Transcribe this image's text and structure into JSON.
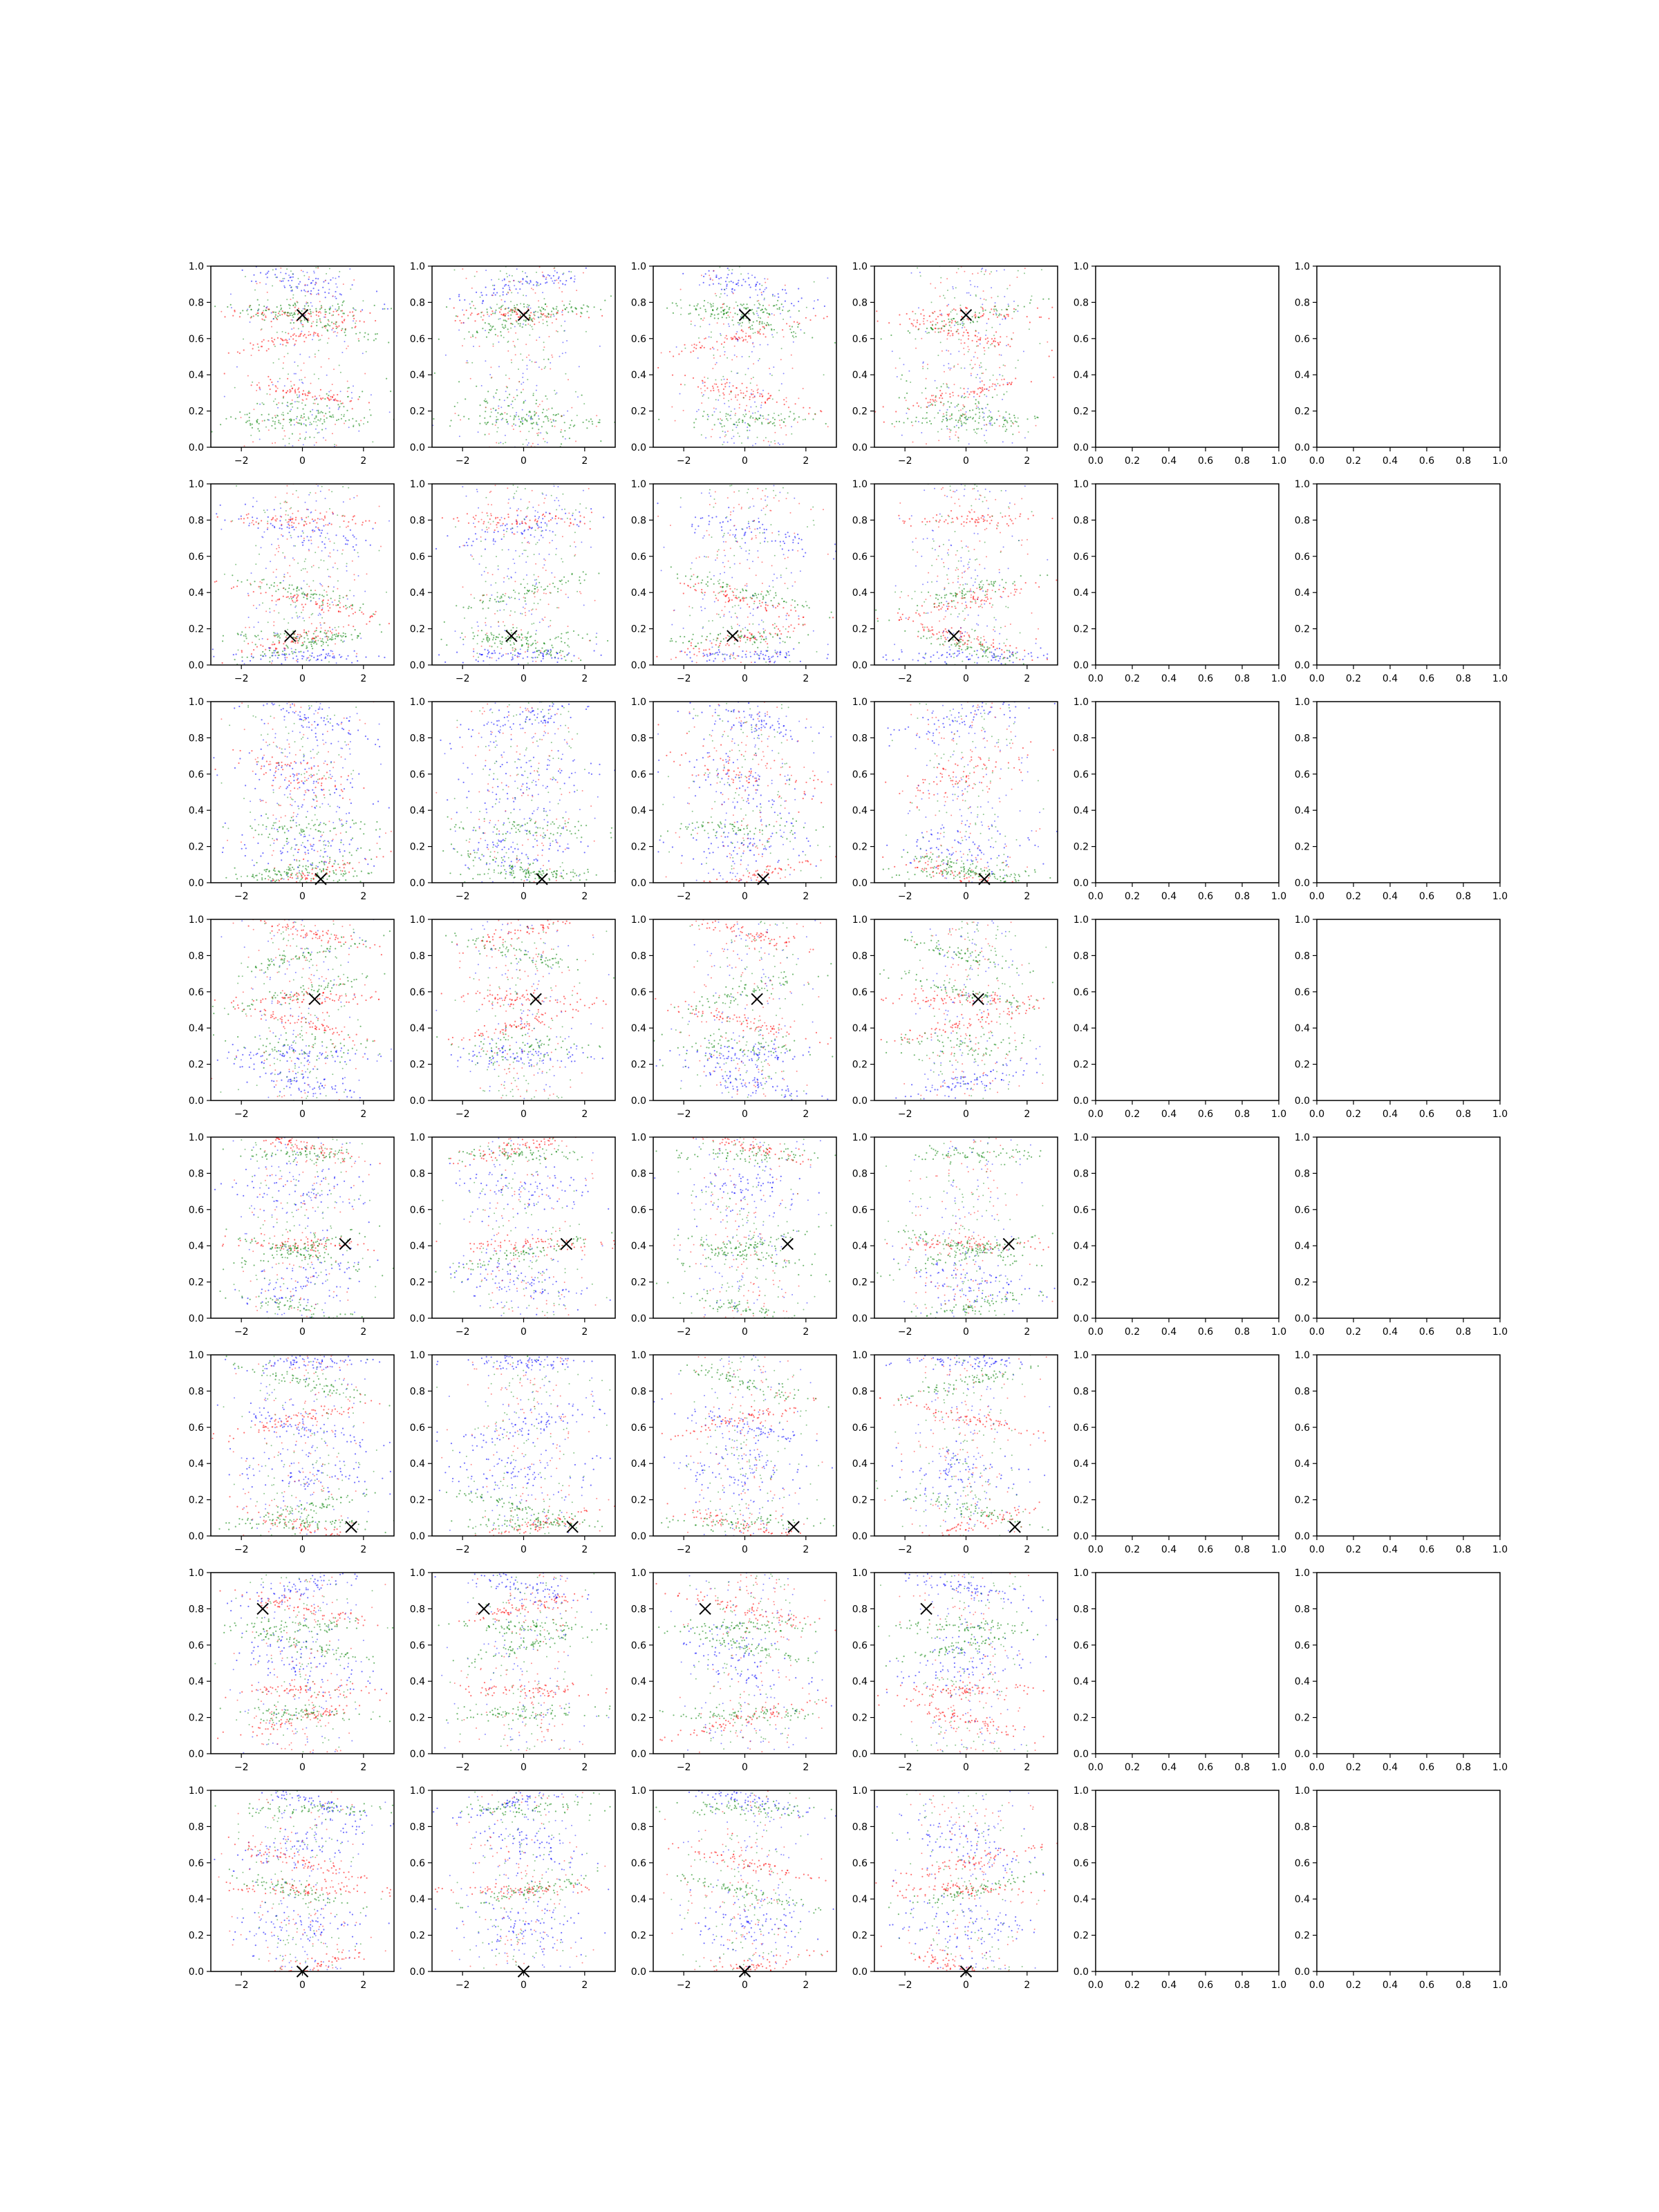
{
  "chart_data": {
    "type": "scatter",
    "layout": "grid of 8 rows x 6 columns of scatter subplots; columns 5-6 are empty axes",
    "title": "",
    "colors": {
      "series_a": "#0000ff",
      "series_b": "#008000",
      "series_c": "#ff0000",
      "marker": "#000000"
    },
    "data_axes": {
      "xlim": [
        -3,
        3
      ],
      "ylim": [
        0,
        1
      ],
      "xticks": [
        -2,
        0,
        2
      ],
      "xtick_labels": [
        "−2",
        "0",
        "2"
      ],
      "yticks": [
        0,
        0.2,
        0.4,
        0.6,
        0.8,
        1.0
      ],
      "ytick_labels": [
        "0.0",
        "0.2",
        "0.4",
        "0.6",
        "0.8",
        "1.0"
      ]
    },
    "empty_axes": {
      "xlim": [
        0,
        1
      ],
      "ylim": [
        0,
        1
      ],
      "xticks": [
        0,
        0.2,
        0.4,
        0.6,
        0.8,
        1.0
      ],
      "xtick_labels": [
        "0.0",
        "0.2",
        "0.4",
        "0.6",
        "0.8",
        "1.0"
      ],
      "yticks": [
        0,
        0.2,
        0.4,
        0.6,
        0.8,
        1.0
      ],
      "ytick_labels": [
        "0.0",
        "0.2",
        "0.4",
        "0.6",
        "0.8",
        "1.0"
      ]
    },
    "marker_points": [
      {
        "row": 1,
        "x": 0.0,
        "y": 0.73
      },
      {
        "row": 2,
        "x": -0.4,
        "y": 0.16
      },
      {
        "row": 3,
        "x": 0.6,
        "y": 0.02
      },
      {
        "row": 4,
        "x": 0.4,
        "y": 0.56
      },
      {
        "row": 5,
        "x": 1.4,
        "y": 0.41
      },
      {
        "row": 6,
        "x": 1.6,
        "y": 0.05
      },
      {
        "row": 7,
        "x": -1.3,
        "y": 0.8
      },
      {
        "row": 8,
        "x": 0.0,
        "y": 0.0
      }
    ],
    "clusters_by_row": [
      [
        {
          "color": "series_a",
          "y": 0.9,
          "spread": 0.03
        },
        {
          "color": "series_c",
          "y": 0.73,
          "spread": 0.02
        },
        {
          "color": "series_c",
          "y": 0.62,
          "spread": 0.02
        },
        {
          "color": "series_b",
          "y": 0.7,
          "spread": 0.02
        },
        {
          "color": "series_b",
          "y": 0.76,
          "spread": 0.02
        },
        {
          "color": "series_b",
          "y": 0.2,
          "spread": 0.06
        },
        {
          "color": "series_c",
          "y": 0.3,
          "spread": 0.02
        },
        {
          "color": "series_b",
          "y": 0.15,
          "spread": 0.02
        }
      ],
      [
        {
          "color": "series_a",
          "y": 0.75,
          "spread": 0.04
        },
        {
          "color": "series_c",
          "y": 0.8,
          "spread": 0.02
        },
        {
          "color": "series_c",
          "y": 0.15,
          "spread": 0.02
        },
        {
          "color": "series_b",
          "y": 0.4,
          "spread": 0.02
        },
        {
          "color": "series_b",
          "y": 0.15,
          "spread": 0.02
        },
        {
          "color": "series_b",
          "y": 0.1,
          "spread": 0.02
        },
        {
          "color": "series_c",
          "y": 0.35,
          "spread": 0.02
        },
        {
          "color": "series_a",
          "y": 0.05,
          "spread": 0.02
        }
      ],
      [
        {
          "color": "series_a",
          "y": 0.55,
          "spread": 0.08
        },
        {
          "color": "series_b",
          "y": 0.05,
          "spread": 0.02
        },
        {
          "color": "series_c",
          "y": 0.03,
          "spread": 0.02
        },
        {
          "color": "series_a",
          "y": 0.9,
          "spread": 0.04
        },
        {
          "color": "series_b",
          "y": 0.3,
          "spread": 0.03
        },
        {
          "color": "series_b",
          "y": 0.08,
          "spread": 0.02
        },
        {
          "color": "series_c",
          "y": 0.6,
          "spread": 0.05
        },
        {
          "color": "series_a",
          "y": 0.2,
          "spread": 0.06
        }
      ],
      [
        {
          "color": "series_c",
          "y": 0.93,
          "spread": 0.02
        },
        {
          "color": "series_c",
          "y": 0.56,
          "spread": 0.02
        },
        {
          "color": "series_b",
          "y": 0.6,
          "spread": 0.02
        },
        {
          "color": "series_c",
          "y": 0.43,
          "spread": 0.02
        },
        {
          "color": "series_a",
          "y": 0.25,
          "spread": 0.03
        },
        {
          "color": "series_b",
          "y": 0.8,
          "spread": 0.02
        },
        {
          "color": "series_a",
          "y": 0.1,
          "spread": 0.03
        },
        {
          "color": "series_b",
          "y": 0.3,
          "spread": 0.04
        }
      ],
      [
        {
          "color": "series_c",
          "y": 0.95,
          "spread": 0.02
        },
        {
          "color": "series_c",
          "y": 0.41,
          "spread": 0.02
        },
        {
          "color": "series_b",
          "y": 0.39,
          "spread": 0.02
        },
        {
          "color": "series_b",
          "y": 0.36,
          "spread": 0.02
        },
        {
          "color": "series_a",
          "y": 0.7,
          "spread": 0.07
        },
        {
          "color": "series_a",
          "y": 0.2,
          "spread": 0.06
        },
        {
          "color": "series_b",
          "y": 0.05,
          "spread": 0.02
        },
        {
          "color": "series_b",
          "y": 0.9,
          "spread": 0.02
        }
      ],
      [
        {
          "color": "series_a",
          "y": 0.6,
          "spread": 0.03
        },
        {
          "color": "series_a",
          "y": 0.96,
          "spread": 0.02
        },
        {
          "color": "series_c",
          "y": 0.65,
          "spread": 0.02
        },
        {
          "color": "series_c",
          "y": 0.05,
          "spread": 0.02
        },
        {
          "color": "series_b",
          "y": 0.07,
          "spread": 0.02
        },
        {
          "color": "series_b",
          "y": 0.15,
          "spread": 0.02
        },
        {
          "color": "series_b",
          "y": 0.85,
          "spread": 0.02
        },
        {
          "color": "series_a",
          "y": 0.35,
          "spread": 0.07
        }
      ],
      [
        {
          "color": "series_c",
          "y": 0.8,
          "spread": 0.02
        },
        {
          "color": "series_c",
          "y": 0.35,
          "spread": 0.02
        },
        {
          "color": "series_c",
          "y": 0.19,
          "spread": 0.02
        },
        {
          "color": "series_b",
          "y": 0.6,
          "spread": 0.02
        },
        {
          "color": "series_b",
          "y": 0.22,
          "spread": 0.02
        },
        {
          "color": "series_a",
          "y": 0.92,
          "spread": 0.03
        },
        {
          "color": "series_a",
          "y": 0.5,
          "spread": 0.07
        },
        {
          "color": "series_b",
          "y": 0.7,
          "spread": 0.02
        }
      ],
      [
        {
          "color": "series_a",
          "y": 0.95,
          "spread": 0.02
        },
        {
          "color": "series_c",
          "y": 0.45,
          "spread": 0.02
        },
        {
          "color": "series_c",
          "y": 0.02,
          "spread": 0.02
        },
        {
          "color": "series_b",
          "y": 0.44,
          "spread": 0.02
        },
        {
          "color": "series_b",
          "y": 0.9,
          "spread": 0.02
        },
        {
          "color": "series_a",
          "y": 0.7,
          "spread": 0.06
        },
        {
          "color": "series_c",
          "y": 0.6,
          "spread": 0.02
        },
        {
          "color": "series_a",
          "y": 0.25,
          "spread": 0.07
        }
      ]
    ]
  }
}
